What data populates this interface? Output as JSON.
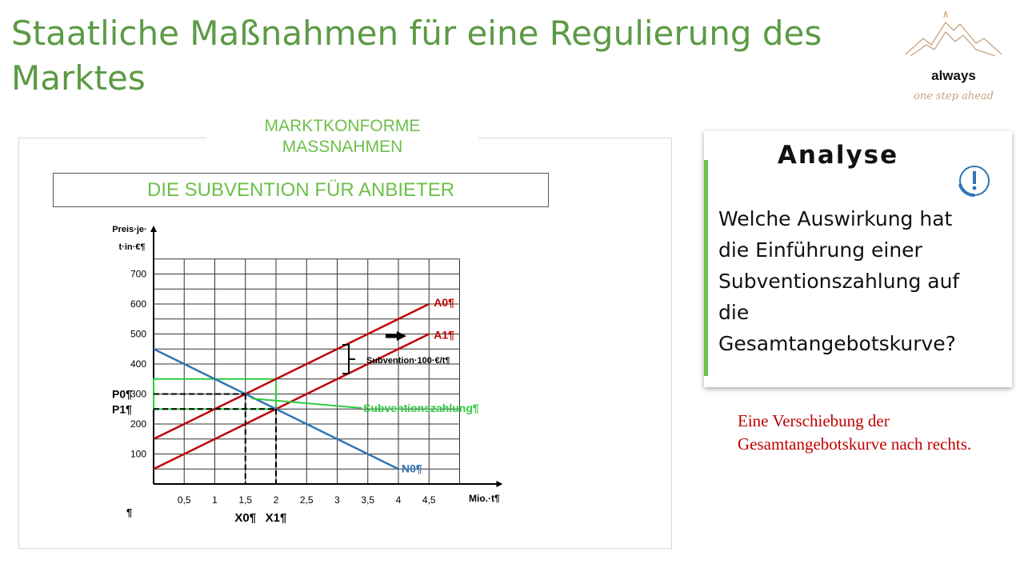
{
  "slide": {
    "title": "Staatliche Maßnahmen für eine Regulierung des Marktes",
    "logo": {
      "line1": "always",
      "line2": "one step ahead"
    }
  },
  "section_label": "MARKTKONFORME MASSNAHMEN",
  "subheading": "DIE SUBVENTION FÜR ANBIETER",
  "panel": {
    "title": "Analyse",
    "icon": "exclamation-circle-icon",
    "question": "Welche Auswirkung hat die Einführung einer Subventionszahlung auf die Gesamtangebotskurve?"
  },
  "answer": "Eine Verschiebung der Gesamtangebotskurve nach rechts.",
  "colors": {
    "title": "#5c9a45",
    "accent": "#6cc04a",
    "supply": "#c00000",
    "demand": "#2e75b6",
    "answer": "#c00000"
  },
  "chart_data": {
    "type": "line",
    "ylabel": "Preis·je· t·in·€¶",
    "xlabel": "Mio.·t¶",
    "xlim": [
      0,
      5
    ],
    "ylim": [
      0,
      750
    ],
    "x_ticks": [
      "0,5",
      "1",
      "1,5",
      "2",
      "2,5",
      "3",
      "3,5",
      "4",
      "4,5"
    ],
    "y_ticks": [
      "100",
      "200",
      "300",
      "400",
      "500",
      "600",
      "700"
    ],
    "grid": true,
    "series": [
      {
        "name": "A0¶",
        "color": "#c00000",
        "points": [
          [
            0,
            150
          ],
          [
            4.5,
            600
          ]
        ]
      },
      {
        "name": "A1¶",
        "color": "#c00000",
        "points": [
          [
            0,
            50
          ],
          [
            4.5,
            500
          ]
        ]
      },
      {
        "name": "N0¶",
        "color": "#2e75b6",
        "points": [
          [
            0,
            450
          ],
          [
            4,
            50
          ]
        ]
      }
    ],
    "equilibria": [
      {
        "x": 1.5,
        "y": 300,
        "x_label": "X0¶",
        "y_label": "P0¶"
      },
      {
        "x": 2,
        "y": 250,
        "x_label": "X1¶",
        "y_label": "P1¶"
      }
    ],
    "subsidy_rect": {
      "x": [
        0,
        2
      ],
      "y": [
        250,
        350
      ],
      "color": "#2ecc40"
    },
    "annotations": {
      "subsidy_amount": "Subvention·100·€/t¶",
      "subsidy_payment": "Subventionszahlung¶"
    },
    "stray_mark": "¶"
  }
}
